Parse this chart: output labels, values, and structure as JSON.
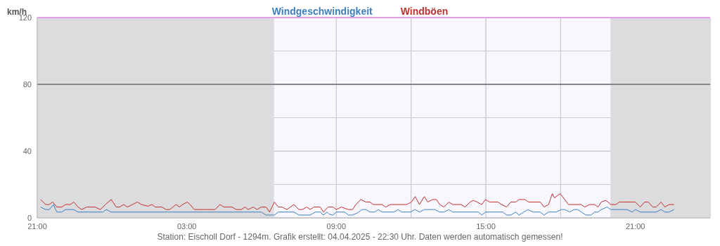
{
  "chart_data": {
    "type": "line",
    "ylabel": "km/h",
    "xlim": [
      "2025-04-03T21:00",
      "2025-04-05T00:00"
    ],
    "ylim": [
      0,
      120
    ],
    "xticks": [
      {
        "value": "2025-04-03T21:00",
        "label": "21:00"
      },
      {
        "value": "2025-04-04T00:00",
        "label": null
      },
      {
        "value": "2025-04-04T03:00",
        "label": "03:00"
      },
      {
        "value": "2025-04-04T06:00",
        "label": null
      },
      {
        "value": "2025-04-04T09:00",
        "label": "09:00"
      },
      {
        "value": "2025-04-04T12:00",
        "label": null
      },
      {
        "value": "2025-04-04T15:00",
        "label": "15:00"
      },
      {
        "value": "2025-04-04T18:00",
        "label": null
      },
      {
        "value": "2025-04-04T21:00",
        "label": "21:00"
      }
    ],
    "yticks": [
      0,
      {
        "value": 20,
        "label": null
      },
      40,
      {
        "value": 60,
        "label": null
      },
      80,
      {
        "value": 100,
        "label": null
      },
      120
    ],
    "grid": true,
    "legend": "top",
    "marker": "none",
    "line_style": "solid",
    "series": [
      {
        "name": "Windgeschwindigkeit",
        "color": "#3a7fc1",
        "x": [
          "2025-04-03T21:08",
          "2025-04-03T21:20",
          "2025-04-03T21:29",
          "2025-04-03T21:39",
          "2025-04-03T21:47",
          "2025-04-03T21:59",
          "2025-04-03T22:08",
          "2025-04-03T22:28",
          "2025-04-03T22:38",
          "2025-04-03T23:38",
          "2025-04-03T23:46",
          "2025-04-03T23:58",
          "2025-04-04T03:47",
          "2025-04-04T05:59",
          "2025-04-04T06:11",
          "2025-04-04T06:31",
          "2025-04-04T06:40",
          "2025-04-04T07:18",
          "2025-04-04T07:30",
          "2025-04-04T07:57",
          "2025-04-04T08:09",
          "2025-04-04T08:21",
          "2025-04-04T08:29",
          "2025-04-04T08:38",
          "2025-04-04T08:43",
          "2025-04-04T08:52",
          "2025-04-04T09:00",
          "2025-04-04T09:20",
          "2025-04-04T09:29",
          "2025-04-04T09:39",
          "2025-04-04T09:51",
          "2025-04-04T10:02",
          "2025-04-04T10:11",
          "2025-04-04T10:21",
          "2025-04-04T10:33",
          "2025-04-04T10:41",
          "2025-04-04T10:50",
          "2025-04-04T11:19",
          "2025-04-04T11:29",
          "2025-04-04T11:37",
          "2025-04-04T11:58",
          "2025-04-04T12:10",
          "2025-04-04T12:20",
          "2025-04-04T12:32",
          "2025-04-04T12:57",
          "2025-04-04T13:09",
          "2025-04-04T13:19",
          "2025-04-04T13:31",
          "2025-04-04T13:40",
          "2025-04-04T14:42",
          "2025-04-04T14:50",
          "2025-04-04T14:59",
          "2025-04-04T15:41",
          "2025-04-04T15:50",
          "2025-04-04T16:00",
          "2025-04-04T16:12",
          "2025-04-04T16:20",
          "2025-04-04T16:41",
          "2025-04-04T16:54",
          "2025-04-04T17:11",
          "2025-04-04T17:20",
          "2025-04-04T17:31",
          "2025-04-04T17:49",
          "2025-04-04T18:02",
          "2025-04-04T18:10",
          "2025-04-04T18:22",
          "2025-04-04T18:32",
          "2025-04-04T18:41",
          "2025-04-04T18:53",
          "2025-04-04T19:01",
          "2025-04-04T19:13",
          "2025-04-04T19:22",
          "2025-04-04T19:30",
          "2025-04-04T19:38",
          "2025-04-04T19:52",
          "2025-04-04T20:01",
          "2025-04-04T20:40",
          "2025-04-04T20:52",
          "2025-04-04T21:00",
          "2025-04-04T21:12",
          "2025-04-04T21:50",
          "2025-04-04T22:02",
          "2025-04-04T22:11",
          "2025-04-04T22:21",
          "2025-04-04T22:33"
        ],
        "values": [
          6.5,
          5,
          5,
          8,
          3.5,
          3.5,
          5,
          5,
          3.5,
          3.5,
          5,
          3.5,
          3.5,
          3.5,
          1.7,
          1.7,
          3.5,
          3.5,
          1.7,
          1.7,
          3.5,
          3.5,
          1.7,
          3.5,
          2.2,
          1.7,
          3.5,
          3.5,
          1.7,
          1.7,
          3,
          5,
          5,
          3.5,
          3.5,
          5,
          3.5,
          3.5,
          5,
          3.5,
          3.5,
          5,
          3.5,
          5,
          5,
          3.5,
          3.5,
          5,
          3.5,
          3.5,
          1.7,
          3.5,
          3.5,
          1.7,
          1.7,
          3.5,
          1.7,
          5,
          3.5,
          3.5,
          1.7,
          3.5,
          3.5,
          5,
          5,
          3.5,
          5,
          5,
          3,
          1.7,
          1.7,
          3.5,
          3.5,
          5,
          6.5,
          5,
          5,
          3.5,
          5,
          3.5,
          3.5,
          5,
          3.5,
          3.5,
          5
        ]
      },
      {
        "name": "Windböen",
        "color": "#c0302f",
        "x": [
          "2025-04-03T21:08",
          "2025-04-03T21:20",
          "2025-04-03T21:29",
          "2025-04-03T21:37",
          "2025-04-03T21:47",
          "2025-04-03T21:59",
          "2025-04-03T22:08",
          "2025-04-03T22:20",
          "2025-04-03T22:28",
          "2025-04-03T22:38",
          "2025-04-03T22:47",
          "2025-04-03T22:59",
          "2025-04-03T23:19",
          "2025-04-03T23:32",
          "2025-04-03T23:44",
          "2025-04-03T23:58",
          "2025-04-04T00:10",
          "2025-04-04T00:18",
          "2025-04-04T00:28",
          "2025-04-04T00:37",
          "2025-04-04T01:01",
          "2025-04-04T01:11",
          "2025-04-04T01:26",
          "2025-04-04T01:36",
          "2025-04-04T01:44",
          "2025-04-04T02:00",
          "2025-04-04T02:10",
          "2025-04-04T02:19",
          "2025-04-04T02:34",
          "2025-04-04T02:42",
          "2025-04-04T02:50",
          "2025-04-04T03:01",
          "2025-04-04T03:08",
          "2025-04-04T03:18",
          "2025-04-04T03:21",
          "2025-04-04T04:08",
          "2025-04-04T04:20",
          "2025-04-04T04:29",
          "2025-04-04T04:49",
          "2025-04-04T04:59",
          "2025-04-04T05:11",
          "2025-04-04T05:20",
          "2025-04-04T05:28",
          "2025-04-04T05:40",
          "2025-04-04T05:49",
          "2025-04-04T05:59",
          "2025-04-04T06:11",
          "2025-04-04T06:19",
          "2025-04-04T06:31",
          "2025-04-04T06:40",
          "2025-04-04T06:49",
          "2025-04-04T07:01",
          "2025-04-04T07:18",
          "2025-04-04T07:30",
          "2025-04-04T07:38",
          "2025-04-04T07:49",
          "2025-04-04T07:57",
          "2025-04-04T08:06",
          "2025-04-04T08:21",
          "2025-04-04T08:29",
          "2025-04-04T08:40",
          "2025-04-04T08:52",
          "2025-04-04T09:00",
          "2025-04-04T09:12",
          "2025-04-04T09:29",
          "2025-04-04T09:39",
          "2025-04-04T09:47",
          "2025-04-04T09:59",
          "2025-04-04T10:11",
          "2025-04-04T10:21",
          "2025-04-04T10:29",
          "2025-04-04T10:50",
          "2025-04-04T10:59",
          "2025-04-04T11:10",
          "2025-04-04T11:49",
          "2025-04-04T12:01",
          "2025-04-04T12:10",
          "2025-04-04T12:20",
          "2025-04-04T12:32",
          "2025-04-04T12:40",
          "2025-04-04T12:52",
          "2025-04-04T13:01",
          "2025-04-04T13:09",
          "2025-04-04T13:19",
          "2025-04-04T13:31",
          "2025-04-04T13:40",
          "2025-04-04T14:00",
          "2025-04-04T14:10",
          "2025-04-04T14:22",
          "2025-04-04T14:30",
          "2025-04-04T14:39",
          "2025-04-04T14:50",
          "2025-04-04T14:59",
          "2025-04-04T15:09",
          "2025-04-04T15:29",
          "2025-04-04T15:38",
          "2025-04-04T15:50",
          "2025-04-04T16:00",
          "2025-04-04T16:12",
          "2025-04-04T16:20",
          "2025-04-04T16:34",
          "2025-04-04T16:43",
          "2025-04-04T17:11",
          "2025-04-04T17:20",
          "2025-04-04T17:31",
          "2025-04-04T17:40",
          "2025-04-04T17:45",
          "2025-04-04T17:59",
          "2025-04-04T18:19",
          "2025-04-04T18:49",
          "2025-04-04T18:58",
          "2025-04-04T19:10",
          "2025-04-04T19:22",
          "2025-04-04T19:30",
          "2025-04-04T19:38",
          "2025-04-04T19:49",
          "2025-04-04T20:01",
          "2025-04-04T20:13",
          "2025-04-04T20:21",
          "2025-04-04T21:00",
          "2025-04-04T21:12",
          "2025-04-04T21:22",
          "2025-04-04T21:31",
          "2025-04-04T21:42",
          "2025-04-04T21:50",
          "2025-04-04T22:02",
          "2025-04-04T22:11",
          "2025-04-04T22:21",
          "2025-04-04T22:33"
        ],
        "values": [
          11,
          8,
          8,
          9.5,
          6.5,
          6.5,
          8,
          8,
          9.5,
          6.5,
          5,
          6.5,
          6.5,
          5,
          8,
          11,
          6.5,
          6.5,
          8,
          6.5,
          9.5,
          8,
          7,
          8,
          6.5,
          6.5,
          5,
          5,
          8,
          6.5,
          8,
          9.5,
          8,
          5,
          5,
          5,
          8,
          6.5,
          6.5,
          5,
          5,
          6.5,
          5,
          6.5,
          5,
          6.5,
          6.5,
          3.5,
          9.5,
          6.5,
          6.5,
          5,
          8,
          5,
          5,
          6.5,
          5,
          6.5,
          6.5,
          3.5,
          6.5,
          6.5,
          5,
          6.5,
          5,
          5,
          8,
          11,
          9.5,
          9.5,
          8,
          8,
          6.5,
          8,
          8,
          9.5,
          12.8,
          8,
          12.8,
          9.5,
          11,
          11,
          8,
          6.5,
          9.5,
          8,
          8,
          6.5,
          9.5,
          10.5,
          9.5,
          8,
          11,
          9.5,
          9.5,
          8,
          6.5,
          9.5,
          9.5,
          11,
          11,
          9.5,
          9.5,
          6.5,
          8,
          14.5,
          12,
          14.5,
          8,
          8,
          6.5,
          8,
          8,
          6.5,
          9.5,
          10.5,
          8,
          8,
          9.5,
          9.5,
          6.5,
          9.5,
          9.5,
          6.5,
          6.5,
          9.5,
          6.5,
          8,
          8
        ]
      }
    ],
    "bands": [
      {
        "axis": "x",
        "from": "2025-04-03T21:00",
        "to": "2025-04-04T06:30",
        "color": "#dcdcdf"
      },
      {
        "axis": "x",
        "from": "2025-04-04T20:00",
        "to": "2025-04-05T00:00",
        "color": "#dcdcdf"
      }
    ],
    "ref_lines": [
      {
        "axis": "y",
        "value": 80,
        "color": "#333333"
      },
      {
        "axis": "y",
        "value": 120,
        "color": "#ee66ee"
      }
    ],
    "annotations": [
      "Station: Eischoll Dorf - 1294m. Grafik erstellt: 04.04.2025 - 22:30 Uhr. Daten werden automatisch gemessen!"
    ]
  }
}
